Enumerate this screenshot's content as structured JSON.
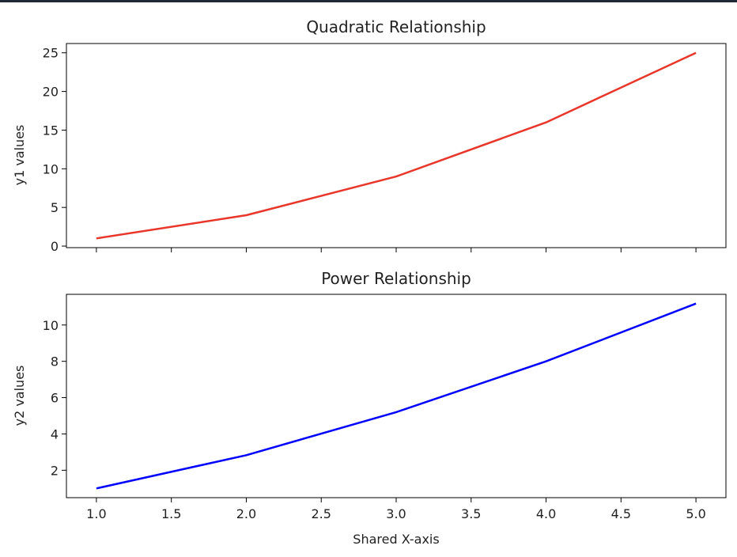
{
  "chart_data": [
    {
      "type": "line",
      "title": "Quadratic Relationship",
      "xlabel": "",
      "ylabel": "y1 values",
      "x": [
        1,
        2,
        3,
        4,
        5
      ],
      "series": [
        {
          "values": [
            1,
            4,
            9,
            16,
            25
          ],
          "color": "#e8372a"
        }
      ],
      "xlim": [
        0.8,
        5.2
      ],
      "ylim": [
        -0.2,
        26.2
      ],
      "yticks": [
        0,
        5,
        10,
        15,
        20,
        25
      ],
      "xticks": [
        1.0,
        1.5,
        2.0,
        2.5,
        3.0,
        3.5,
        4.0,
        4.5,
        5.0
      ],
      "xtick_labels_shown": false,
      "grid": false
    },
    {
      "type": "line",
      "title": "Power Relationship",
      "xlabel": "Shared X-axis",
      "ylabel": "y2 values",
      "x": [
        1,
        2,
        3,
        4,
        5
      ],
      "series": [
        {
          "values": [
            1.0,
            2.83,
            5.2,
            8.0,
            11.18
          ],
          "color": "#0000ff"
        }
      ],
      "xlim": [
        0.8,
        5.2
      ],
      "ylim": [
        0.49,
        11.69
      ],
      "yticks": [
        2,
        4,
        6,
        8,
        10
      ],
      "xticks": [
        1.0,
        1.5,
        2.0,
        2.5,
        3.0,
        3.5,
        4.0,
        4.5,
        5.0
      ],
      "xtick_labels_shown": true,
      "grid": false
    }
  ]
}
